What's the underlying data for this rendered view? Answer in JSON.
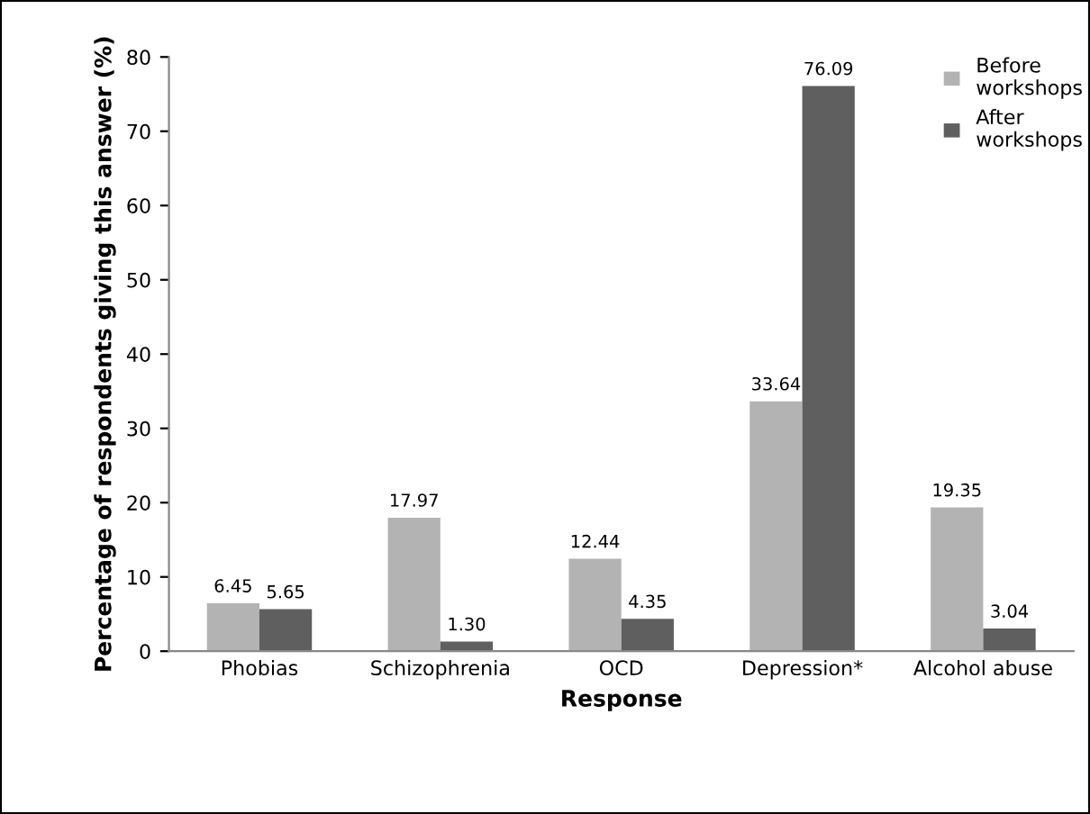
{
  "chart_data": {
    "type": "bar",
    "xlabel": "Response",
    "ylabel": "Percentage of respondents giving this answer (%)",
    "categories": [
      "Phobias",
      "Schizophrenia",
      "OCD",
      "Depression*",
      "Alcohol abuse"
    ],
    "series": [
      {
        "name": "Before workshops",
        "color": "#b3b3b3",
        "values": [
          6.45,
          17.97,
          12.44,
          33.64,
          19.35
        ],
        "value_labels": [
          "6.45",
          "17.97",
          "12.44",
          "33.64",
          "19.35"
        ]
      },
      {
        "name": "After workshops",
        "color": "#5f5f5f",
        "values": [
          5.65,
          1.3,
          4.35,
          76.09,
          3.04
        ],
        "value_labels": [
          "5.65",
          "1.30",
          "4.35",
          "76.09",
          "3.04"
        ]
      }
    ],
    "ylim": [
      0,
      80
    ],
    "yticks": [
      0,
      10,
      20,
      30,
      40,
      50,
      60,
      70,
      80
    ],
    "grid": false,
    "legend": "top right"
  }
}
